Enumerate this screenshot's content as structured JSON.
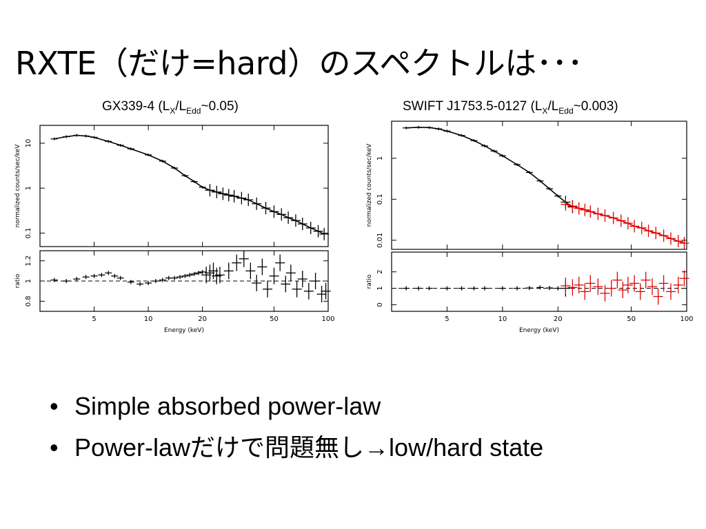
{
  "slide": {
    "title": "RXTE（だけ=hard）のスペクトルは･･･",
    "bullets": [
      "Simple absorbed power-law",
      "Power-lawだけで問題無し→low/hard state"
    ],
    "bullet_symbol": "•"
  },
  "panels": [
    {
      "title": {
        "pre": "GX339-4 (L",
        "sub1": "X",
        "mid": "/L",
        "sub2": "Edd",
        "post": "~0.05)"
      }
    },
    {
      "title": {
        "pre": "SWIFT J1753.5-0127 (L",
        "sub1": "X",
        "mid": "/L",
        "sub2": "Edd",
        "post": "~0.003)"
      }
    }
  ],
  "chart_data": [
    {
      "type": "scatter",
      "xlabel": "Energy (keV)",
      "xscale": "log",
      "xlim": [
        2.5,
        100
      ],
      "xticks": [
        5,
        10,
        20,
        50,
        100
      ],
      "top": {
        "ylabel": "normalized counts/sec/keV",
        "yscale": "log",
        "ylim": [
          0.05,
          25
        ],
        "yticks": [
          {
            "v": 10,
            "l": "10"
          },
          {
            "v": 1,
            "l": "1"
          },
          {
            "v": 0.1,
            "l": "0.1"
          }
        ],
        "series": [
          {
            "color": "#000000",
            "data": [
              [
                3,
                12.5
              ],
              [
                3.5,
                14
              ],
              [
                4,
                15
              ],
              [
                4.5,
                14.5
              ],
              [
                5,
                13.5
              ],
              [
                6,
                11
              ],
              [
                7,
                9
              ],
              [
                8,
                7.5
              ],
              [
                10,
                5.5
              ],
              [
                12,
                4
              ],
              [
                14,
                2.8
              ],
              [
                16,
                1.9
              ],
              [
                18,
                1.4
              ],
              [
                20,
                1.05
              ],
              [
                22,
                0.9
              ],
              [
                24,
                0.82
              ],
              [
                26,
                0.75
              ],
              [
                28,
                0.7
              ],
              [
                30,
                0.66
              ],
              [
                33,
                0.6
              ],
              [
                36,
                0.55
              ],
              [
                40,
                0.45
              ],
              [
                45,
                0.36
              ],
              [
                50,
                0.3
              ],
              [
                55,
                0.26
              ],
              [
                60,
                0.22
              ],
              [
                66,
                0.19
              ],
              [
                72,
                0.16
              ],
              [
                80,
                0.13
              ],
              [
                88,
                0.11
              ],
              [
                95,
                0.095
              ]
            ]
          }
        ]
      },
      "bottom": {
        "ylabel": "ratio",
        "ylim": [
          0.7,
          1.3
        ],
        "yticks": [
          {
            "v": 1.2,
            "l": "1.2"
          },
          {
            "v": 1,
            "l": "1"
          },
          {
            "v": 0.8,
            "l": "0.8"
          }
        ],
        "reference_line": 1,
        "series": [
          {
            "color": "#000000",
            "data": [
              [
                3,
                1.01
              ],
              [
                3.5,
                1.0
              ],
              [
                4,
                1.02
              ],
              [
                4.5,
                1.04
              ],
              [
                5,
                1.05
              ],
              [
                5.5,
                1.06
              ],
              [
                6,
                1.08
              ],
              [
                6.5,
                1.05
              ],
              [
                7,
                1.03
              ],
              [
                8,
                0.99
              ],
              [
                9,
                0.97
              ],
              [
                10,
                0.98
              ],
              [
                11,
                1.0
              ],
              [
                12,
                1.01
              ],
              [
                13,
                1.03
              ],
              [
                14,
                1.03
              ],
              [
                15,
                1.04
              ],
              [
                16,
                1.05
              ],
              [
                17,
                1.06
              ],
              [
                18,
                1.07
              ],
              [
                19,
                1.08
              ],
              [
                20,
                1.09
              ],
              [
                21,
                1.06
              ],
              [
                22,
                1.08
              ],
              [
                23,
                1.1
              ],
              [
                24,
                1.05
              ],
              [
                25,
                1.06
              ],
              [
                28,
                1.1
              ],
              [
                31,
                1.18
              ],
              [
                34,
                1.22
              ],
              [
                37,
                1.1
              ],
              [
                40,
                0.98
              ],
              [
                43,
                1.14
              ],
              [
                46,
                0.92
              ],
              [
                50,
                1.05
              ],
              [
                54,
                1.18
              ],
              [
                58,
                0.97
              ],
              [
                62,
                1.08
              ],
              [
                67,
                0.92
              ],
              [
                72,
                1.02
              ],
              [
                78,
                0.9
              ],
              [
                85,
                1.0
              ],
              [
                92,
                0.87
              ],
              [
                97,
                0.9
              ]
            ]
          }
        ]
      }
    },
    {
      "type": "scatter",
      "xlabel": "Energy (keV)",
      "xscale": "log",
      "xlim": [
        2.5,
        100
      ],
      "xticks": [
        5,
        10,
        20,
        50,
        100
      ],
      "top": {
        "ylabel": "normalized counts/sec/keV",
        "yscale": "log",
        "ylim": [
          0.006,
          8
        ],
        "yticks": [
          {
            "v": 1,
            "l": "1"
          },
          {
            "v": 0.1,
            "l": "0.1"
          },
          {
            "v": 0.01,
            "l": "0.01"
          }
        ],
        "series": [
          {
            "color": "#000000",
            "data": [
              [
                3,
                5.5
              ],
              [
                3.5,
                5.7
              ],
              [
                4,
                5.6
              ],
              [
                4.5,
                5.2
              ],
              [
                5,
                4.6
              ],
              [
                6,
                3.6
              ],
              [
                7,
                2.7
              ],
              [
                8,
                2.0
              ],
              [
                9,
                1.5
              ],
              [
                10,
                1.15
              ],
              [
                12,
                0.7
              ],
              [
                14,
                0.45
              ],
              [
                16,
                0.28
              ],
              [
                18,
                0.18
              ],
              [
                20,
                0.12
              ],
              [
                22,
                0.085
              ],
              [
                24,
                0.065
              ]
            ]
          },
          {
            "color": "#e00000",
            "data": [
              [
                22,
                0.075
              ],
              [
                24,
                0.068
              ],
              [
                26,
                0.06
              ],
              [
                28,
                0.055
              ],
              [
                30,
                0.05
              ],
              [
                33,
                0.044
              ],
              [
                36,
                0.04
              ],
              [
                40,
                0.035
              ],
              [
                44,
                0.03
              ],
              [
                48,
                0.026
              ],
              [
                52,
                0.022
              ],
              [
                57,
                0.02
              ],
              [
                62,
                0.017
              ],
              [
                68,
                0.015
              ],
              [
                75,
                0.013
              ],
              [
                82,
                0.011
              ],
              [
                90,
                0.0095
              ],
              [
                97,
                0.0085
              ]
            ]
          }
        ]
      },
      "bottom": {
        "ylabel": "ratio",
        "ylim": [
          -0.4,
          3.2
        ],
        "yticks": [
          {
            "v": 2,
            "l": "2"
          },
          {
            "v": 1,
            "l": "1"
          },
          {
            "v": 0,
            "l": "0"
          }
        ],
        "reference_line": 1,
        "series": [
          {
            "color": "#000000",
            "data": [
              [
                3,
                1.0
              ],
              [
                3.5,
                1.0
              ],
              [
                4,
                1.0
              ],
              [
                5,
                1.0
              ],
              [
                6,
                1.0
              ],
              [
                7,
                1.0
              ],
              [
                8,
                1.0
              ],
              [
                10,
                1.0
              ],
              [
                12,
                1.0
              ],
              [
                14,
                1.02
              ],
              [
                16,
                1.05
              ],
              [
                18,
                1.02
              ],
              [
                20,
                1.0
              ],
              [
                22,
                1.0
              ]
            ]
          },
          {
            "color": "#e00000",
            "data": [
              [
                22,
                1.15
              ],
              [
                24,
                1.05
              ],
              [
                26,
                1.2
              ],
              [
                28,
                0.8
              ],
              [
                30,
                1.3
              ],
              [
                33,
                1.1
              ],
              [
                36,
                0.7
              ],
              [
                39,
                1.0
              ],
              [
                42,
                1.5
              ],
              [
                45,
                0.9
              ],
              [
                48,
                1.2
              ],
              [
                52,
                1.3
              ],
              [
                56,
                0.8
              ],
              [
                60,
                1.5
              ],
              [
                65,
                1.1
              ],
              [
                70,
                0.5
              ],
              [
                75,
                1.3
              ],
              [
                82,
                0.8
              ],
              [
                90,
                1.2
              ],
              [
                97,
                1.6
              ]
            ]
          }
        ]
      }
    }
  ]
}
